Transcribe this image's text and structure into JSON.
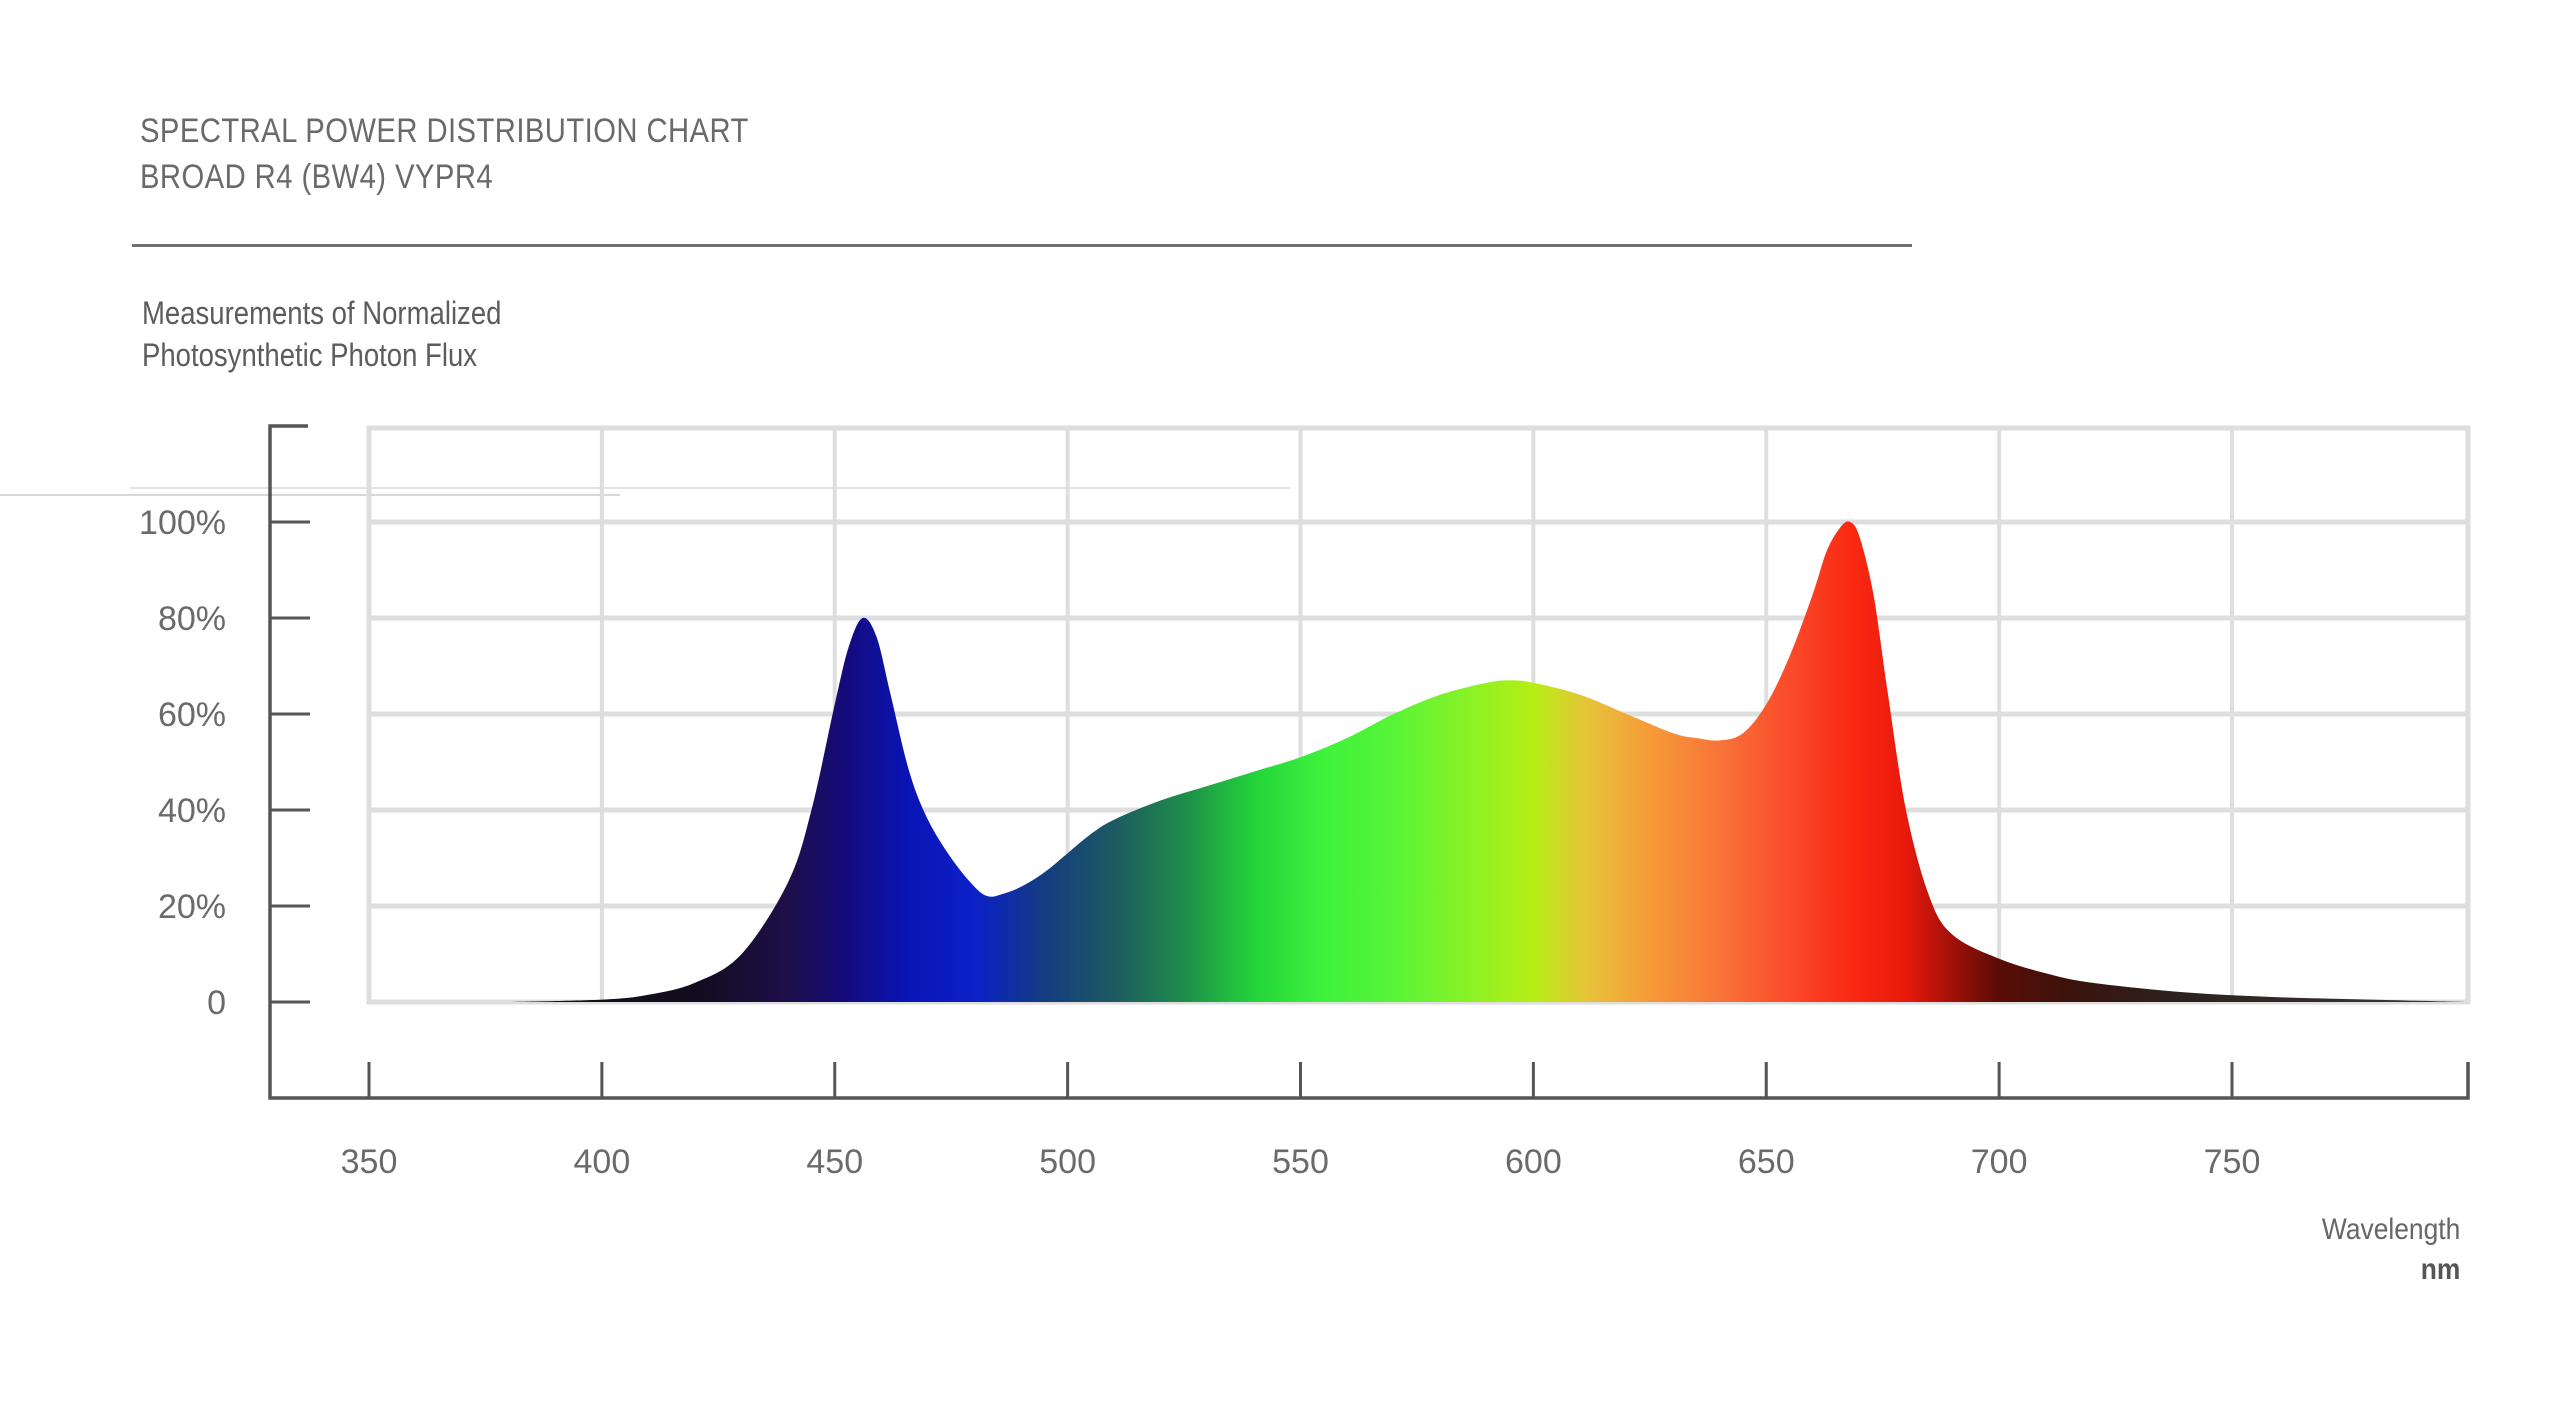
{
  "header": {
    "title_line1": "SPECTRAL POWER DISTRIBUTION CHART",
    "title_line2": "BROAD R4 (BW4) VYPR4",
    "subtitle_line1": "Measurements of Normalized",
    "subtitle_line2": "Photosynthetic Photon Flux"
  },
  "colors": {
    "axis": "#555555",
    "grid": "#dedede",
    "text": "#5c5c5c"
  },
  "chart_data": {
    "type": "area",
    "title": "SPECTRAL POWER DISTRIBUTION CHART BROAD R4 (BW4) VYPR4",
    "subtitle": "Measurements of Normalized Photosynthetic Photon Flux",
    "xlabel": "Wavelength",
    "xunit": "nm",
    "ylabel": "",
    "x_ticks": [
      "350",
      "400",
      "450",
      "500",
      "550",
      "600",
      "650",
      "700",
      "750"
    ],
    "y_ticks": [
      "0",
      "20%",
      "40%",
      "60%",
      "80%",
      "100%"
    ],
    "xlim": [
      350,
      800
    ],
    "ylim": [
      0,
      100
    ],
    "grid": true,
    "series": [
      {
        "x": [
          380,
          400,
          410,
          420,
          430,
          440,
          445,
          450,
          453,
          456,
          459,
          462,
          466,
          470,
          475,
          480,
          483,
          486,
          490,
          495,
          500,
          505,
          510,
          520,
          530,
          540,
          550,
          560,
          570,
          580,
          590,
          595,
          600,
          610,
          620,
          630,
          635,
          640,
          645,
          650,
          655,
          660,
          663,
          666,
          668,
          670,
          673,
          676,
          680,
          685,
          690,
          700,
          710,
          720,
          740,
          760,
          780,
          800
        ],
        "y": [
          0,
          0.5,
          1.5,
          4,
          10,
          25,
          40,
          62,
          74,
          80,
          76,
          64,
          48,
          38,
          30,
          24,
          22,
          22.5,
          24,
          27,
          31,
          35,
          38,
          42,
          45,
          48,
          51,
          55,
          60,
          64,
          66.5,
          67,
          66.5,
          64,
          60,
          56,
          55,
          54.5,
          56,
          62,
          72,
          85,
          94,
          99,
          100,
          97,
          85,
          65,
          40,
          22,
          14,
          9,
          6,
          4,
          2,
          1,
          0.5,
          0
        ]
      }
    ]
  }
}
